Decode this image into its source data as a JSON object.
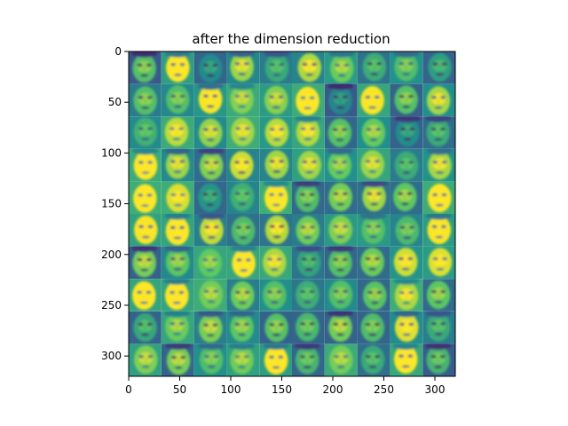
{
  "title": "after the dimension reduction",
  "image": {
    "subject": "grid of face images",
    "grid_rows": 10,
    "grid_cols": 10,
    "colormap": "viridis",
    "colormap_stops": [
      "#440154",
      "#3b528b",
      "#21918c",
      "#5ec962",
      "#fde725"
    ],
    "extent_x": [
      0,
      320
    ],
    "extent_y": [
      320,
      0
    ]
  },
  "axes": {
    "x_ticks": [
      0,
      50,
      100,
      150,
      200,
      250,
      300
    ],
    "y_ticks": [
      0,
      50,
      100,
      150,
      200,
      250,
      300
    ]
  }
}
